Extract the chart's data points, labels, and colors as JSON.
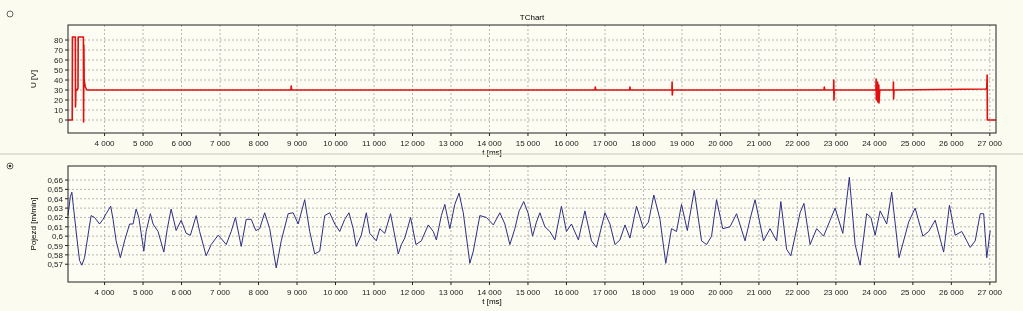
{
  "chart_data": [
    {
      "type": "line",
      "title": "TChart",
      "xlabel": "t [ms]",
      "ylabel": "U [V]",
      "xlim": [
        3050,
        27160
      ],
      "ylim": [
        -13,
        95
      ],
      "xticks": [
        {
          "value": 4000,
          "label": "4 000"
        },
        {
          "value": 5000,
          "label": "5 000"
        },
        {
          "value": 6000,
          "label": "6 000"
        },
        {
          "value": 7000,
          "label": "7 000"
        },
        {
          "value": 8000,
          "label": "8 000"
        },
        {
          "value": 9000,
          "label": "9 000"
        },
        {
          "value": 10000,
          "label": "10 000"
        },
        {
          "value": 11000,
          "label": "11 000"
        },
        {
          "value": 12000,
          "label": "12 000"
        },
        {
          "value": 13000,
          "label": "13 000"
        },
        {
          "value": 14000,
          "label": "14 000"
        },
        {
          "value": 15000,
          "label": "15 000"
        },
        {
          "value": 16000,
          "label": "16 000"
        },
        {
          "value": 17000,
          "label": "17 000"
        },
        {
          "value": 18000,
          "label": "18 000"
        },
        {
          "value": 19000,
          "label": "19 000"
        },
        {
          "value": 20000,
          "label": "20 000"
        },
        {
          "value": 21000,
          "label": "21 000"
        },
        {
          "value": 22000,
          "label": "22 000"
        },
        {
          "value": 23000,
          "label": "23 000"
        },
        {
          "value": 24000,
          "label": "24 000"
        },
        {
          "value": 25000,
          "label": "25 000"
        },
        {
          "value": 26000,
          "label": "26 000"
        },
        {
          "value": 27000,
          "label": "27 000"
        }
      ],
      "yticks": [
        0,
        10,
        20,
        30,
        40,
        50,
        60,
        70,
        80
      ],
      "grid": true,
      "x": [
        3050,
        3160,
        3165,
        3240,
        3245,
        3255,
        3265,
        3290,
        3310,
        3315,
        3450,
        3455,
        3462,
        3470,
        3480,
        3500,
        3540,
        3600,
        3700,
        8840,
        8850,
        8860,
        16740,
        16750,
        16760,
        17640,
        17650,
        17660,
        18740,
        18745,
        18750,
        18760,
        22690,
        22700,
        22710,
        22940,
        22945,
        22950,
        22960,
        24040,
        24045,
        24050,
        24060,
        24080,
        24085,
        24090,
        24110,
        24115,
        24120,
        24140,
        24490,
        24495,
        24500,
        24510,
        26900,
        26920,
        26930,
        26935,
        26945,
        27160
      ],
      "series": [
        {
          "color": "#e01010",
          "values": [
            0,
            0,
            83,
            83,
            13,
            31,
            30,
            30,
            32,
            83,
            83,
            -2,
            75,
            40,
            37,
            33,
            30,
            30,
            30,
            30,
            34,
            30,
            30,
            33,
            30,
            30,
            33,
            30,
            30,
            38,
            25,
            30,
            30,
            33,
            30,
            30,
            40,
            20,
            30,
            30,
            41,
            20,
            30,
            30,
            38,
            18,
            30,
            35,
            17,
            30,
            30,
            38,
            21,
            30,
            31,
            32,
            45,
            0,
            0,
            0
          ]
        }
      ]
    },
    {
      "type": "line",
      "xlabel": "t [ms]",
      "ylabel": "Pojezd [m/min]",
      "xlim": [
        3050,
        27160
      ],
      "ylim": [
        0.551,
        0.675
      ],
      "xticks": [
        {
          "value": 4000,
          "label": "4 000"
        },
        {
          "value": 5000,
          "label": "5 000"
        },
        {
          "value": 6000,
          "label": "6 000"
        },
        {
          "value": 7000,
          "label": "7 000"
        },
        {
          "value": 8000,
          "label": "8 000"
        },
        {
          "value": 9000,
          "label": "9 000"
        },
        {
          "value": 10000,
          "label": "10 000"
        },
        {
          "value": 11000,
          "label": "11 000"
        },
        {
          "value": 12000,
          "label": "12 000"
        },
        {
          "value": 13000,
          "label": "13 000"
        },
        {
          "value": 14000,
          "label": "14 000"
        },
        {
          "value": 15000,
          "label": "15 000"
        },
        {
          "value": 16000,
          "label": "16 000"
        },
        {
          "value": 17000,
          "label": "17 000"
        },
        {
          "value": 18000,
          "label": "18 000"
        },
        {
          "value": 19000,
          "label": "19 000"
        },
        {
          "value": 20000,
          "label": "20 000"
        },
        {
          "value": 21000,
          "label": "21 000"
        },
        {
          "value": 22000,
          "label": "22 000"
        },
        {
          "value": 23000,
          "label": "23 000"
        },
        {
          "value": 24000,
          "label": "24 000"
        },
        {
          "value": 25000,
          "label": "25 000"
        },
        {
          "value": 26000,
          "label": "26 000"
        },
        {
          "value": 27000,
          "label": "27 000"
        }
      ],
      "yticks": [
        {
          "value": 0.57,
          "label": "0,57"
        },
        {
          "value": 0.58,
          "label": "0,58"
        },
        {
          "value": 0.59,
          "label": "0,59"
        },
        {
          "value": 0.6,
          "label": "0,6"
        },
        {
          "value": 0.61,
          "label": "0,61"
        },
        {
          "value": 0.62,
          "label": "0,62"
        },
        {
          "value": 0.63,
          "label": "0,63"
        },
        {
          "value": 0.64,
          "label": "0,64"
        },
        {
          "value": 0.65,
          "label": "0,65"
        },
        {
          "value": 0.66,
          "label": "0,66"
        }
      ],
      "grid": true,
      "x": [
        3050,
        3110,
        3150,
        3190,
        3280,
        3350,
        3410,
        3480,
        3570,
        3650,
        3740,
        3870,
        3960,
        4040,
        4160,
        4220,
        4300,
        4410,
        4520,
        4650,
        4740,
        4820,
        4890,
        5020,
        5080,
        5190,
        5260,
        5390,
        5540,
        5630,
        5730,
        5860,
        5990,
        6120,
        6230,
        6380,
        6470,
        6640,
        6770,
        6860,
        6950,
        7060,
        7160,
        7290,
        7400,
        7550,
        7680,
        7810,
        7930,
        8030,
        8160,
        8290,
        8460,
        8590,
        8770,
        8900,
        9030,
        9200,
        9330,
        9460,
        9590,
        9720,
        9850,
        9980,
        10110,
        10240,
        10350,
        10460,
        10540,
        10670,
        10800,
        10890,
        11060,
        11150,
        11280,
        11430,
        11630,
        11710,
        11800,
        11950,
        12090,
        12230,
        12410,
        12540,
        12620,
        12750,
        12840,
        12970,
        13100,
        13210,
        13320,
        13490,
        13580,
        13750,
        13920,
        14100,
        14270,
        14400,
        14530,
        14660,
        14770,
        14890,
        15010,
        15120,
        15220,
        15310,
        15440,
        15570,
        15700,
        15870,
        16000,
        16130,
        16310,
        16480,
        16650,
        16780,
        17000,
        17130,
        17260,
        17390,
        17520,
        17650,
        17820,
        18000,
        18130,
        18270,
        18430,
        18580,
        18730,
        18860,
        18990,
        19140,
        19320,
        19510,
        19640,
        19770,
        19900,
        20060,
        20250,
        20420,
        20640,
        20770,
        20900,
        21120,
        21290,
        21460,
        21570,
        21720,
        21830,
        21940,
        22070,
        22170,
        22330,
        22500,
        22680,
        22850,
        22980,
        23180,
        23350,
        23500,
        23630,
        23800,
        23910,
        24020,
        24150,
        24320,
        24450,
        24640,
        24800,
        24890,
        25060,
        25260,
        25410,
        25580,
        25800,
        25950,
        26100,
        26270,
        26400,
        26490,
        26620,
        26750,
        26840,
        26920,
        27010
      ],
      "series": [
        {
          "color": "#2e2e86",
          "values": [
            0.622,
            0.642,
            0.647,
            0.632,
            0.598,
            0.574,
            0.569,
            0.577,
            0.601,
            0.622,
            0.62,
            0.613,
            0.618,
            0.624,
            0.632,
            0.618,
            0.595,
            0.577,
            0.595,
            0.613,
            0.613,
            0.629,
            0.62,
            0.584,
            0.605,
            0.624,
            0.613,
            0.605,
            0.583,
            0.608,
            0.629,
            0.606,
            0.617,
            0.603,
            0.601,
            0.622,
            0.605,
            0.579,
            0.591,
            0.596,
            0.601,
            0.596,
            0.591,
            0.605,
            0.62,
            0.589,
            0.618,
            0.618,
            0.606,
            0.608,
            0.625,
            0.608,
            0.566,
            0.595,
            0.624,
            0.625,
            0.613,
            0.639,
            0.605,
            0.581,
            0.584,
            0.622,
            0.625,
            0.613,
            0.605,
            0.618,
            0.625,
            0.608,
            0.589,
            0.601,
            0.625,
            0.603,
            0.595,
            0.608,
            0.603,
            0.624,
            0.581,
            0.591,
            0.598,
            0.62,
            0.591,
            0.595,
            0.612,
            0.605,
            0.596,
            0.622,
            0.634,
            0.608,
            0.634,
            0.646,
            0.625,
            0.571,
            0.584,
            0.622,
            0.62,
            0.612,
            0.625,
            0.613,
            0.591,
            0.608,
            0.627,
            0.637,
            0.624,
            0.6,
            0.615,
            0.625,
            0.61,
            0.605,
            0.596,
            0.632,
            0.605,
            0.613,
            0.596,
            0.627,
            0.595,
            0.588,
            0.625,
            0.613,
            0.591,
            0.596,
            0.612,
            0.598,
            0.632,
            0.608,
            0.615,
            0.644,
            0.618,
            0.571,
            0.608,
            0.605,
            0.634,
            0.606,
            0.649,
            0.595,
            0.591,
            0.6,
            0.639,
            0.608,
            0.61,
            0.624,
            0.595,
            0.618,
            0.639,
            0.595,
            0.608,
            0.595,
            0.637,
            0.586,
            0.579,
            0.6,
            0.625,
            0.635,
            0.591,
            0.608,
            0.6,
            0.617,
            0.63,
            0.603,
            0.663,
            0.591,
            0.569,
            0.624,
            0.62,
            0.601,
            0.627,
            0.613,
            0.647,
            0.577,
            0.601,
            0.615,
            0.63,
            0.6,
            0.605,
            0.617,
            0.583,
            0.633,
            0.601,
            0.605,
            0.595,
            0.588,
            0.595,
            0.624,
            0.624,
            0.577,
            0.606
          ]
        }
      ]
    }
  ]
}
